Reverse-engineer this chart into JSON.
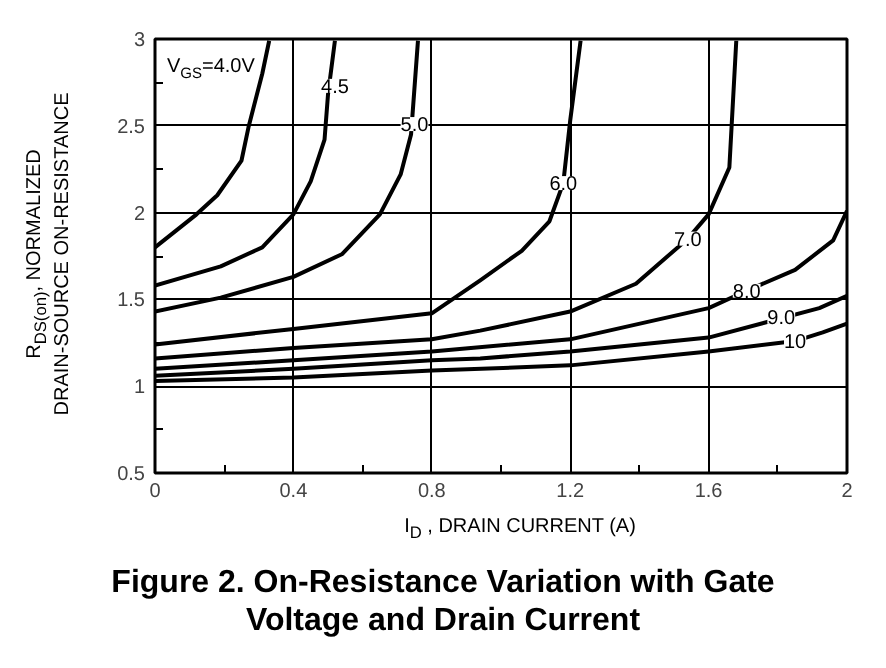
{
  "chart_data": {
    "type": "line",
    "title": "Figure 2. On-Resistance Variation with Gate Voltage and Drain Current",
    "xlabel": "I$_{D}$ , DRAIN CURRENT (A)",
    "ylabel": "R$_{DS(on)}$, NORMALIZED\nDRAIN-SOURCE ON-RESISTANCE",
    "xlim": [
      0,
      2
    ],
    "ylim": [
      0.5,
      3
    ],
    "xticks": [
      0,
      {
        "value": 0.2,
        "label": null
      },
      0.4,
      {
        "value": 0.6,
        "label": null
      },
      0.8,
      {
        "value": 1.0,
        "label": null
      },
      1.2,
      {
        "value": 1.4,
        "label": null
      },
      1.6,
      {
        "value": 1.8,
        "label": null
      },
      2
    ],
    "yticks": [
      {
        "value": 0.5,
        "label": "0.5"
      },
      {
        "value": 0.75,
        "label": null
      },
      1,
      {
        "value": 1.25,
        "label": null
      },
      1.5,
      {
        "value": 1.75,
        "label": null
      },
      2,
      {
        "value": 2.25,
        "label": null
      },
      2.5,
      {
        "value": 2.75,
        "label": null
      },
      3
    ],
    "grid": true,
    "marker": "none",
    "line_style": "solid",
    "series": [
      {
        "color": "#000000",
        "x": [
          0,
          0.12,
          0.18,
          0.25,
          0.27,
          0.31,
          0.33
        ],
        "values": [
          1.8,
          1.99,
          2.1,
          2.3,
          2.49,
          2.8,
          2.99
        ]
      },
      {
        "color": "#000000",
        "x": [
          0,
          0.19,
          0.31,
          0.4,
          0.45,
          0.49,
          0.5,
          0.52
        ],
        "values": [
          1.58,
          1.69,
          1.8,
          1.99,
          2.18,
          2.42,
          2.68,
          2.99
        ]
      },
      {
        "color": "#000000",
        "x": [
          0,
          0.19,
          0.4,
          0.54,
          0.65,
          0.71,
          0.74,
          0.76
        ],
        "values": [
          1.43,
          1.51,
          1.63,
          1.76,
          1.99,
          2.22,
          2.45,
          2.99
        ]
      },
      {
        "color": "#000000",
        "x": [
          0,
          0.4,
          0.8,
          0.94,
          1.06,
          1.14,
          1.18,
          1.2,
          1.23
        ],
        "values": [
          1.24,
          1.33,
          1.42,
          1.61,
          1.78,
          1.95,
          2.17,
          2.53,
          2.99
        ]
      },
      {
        "color": "#000000",
        "x": [
          0,
          0.4,
          0.8,
          0.94,
          1.2,
          1.39,
          1.54,
          1.6,
          1.66,
          1.68
        ],
        "values": [
          1.16,
          1.22,
          1.27,
          1.32,
          1.43,
          1.59,
          1.85,
          1.99,
          2.26,
          2.99
        ]
      },
      {
        "color": "#000000",
        "x": [
          0,
          0.4,
          0.8,
          1.2,
          1.6,
          1.71,
          1.85,
          1.96,
          2
        ],
        "values": [
          1.1,
          1.15,
          1.2,
          1.27,
          1.45,
          1.55,
          1.67,
          1.84,
          2.01
        ]
      },
      {
        "color": "#000000",
        "x": [
          0,
          0.4,
          0.8,
          0.94,
          1.2,
          1.6,
          1.92,
          2
        ],
        "values": [
          1.06,
          1.1,
          1.15,
          1.16,
          1.2,
          1.28,
          1.45,
          1.52
        ]
      },
      {
        "color": "#000000",
        "x": [
          0,
          0.4,
          0.8,
          1.2,
          1.6,
          1.85,
          1.93,
          2
        ],
        "values": [
          1.03,
          1.05,
          1.09,
          1.12,
          1.2,
          1.26,
          1.31,
          1.36
        ]
      }
    ],
    "annotations": [
      "V$_{GS}$=4.0V",
      {
        "text": "4.5",
        "x": 0.52,
        "y": 2.73
      },
      {
        "text": "5.0",
        "x": 0.75,
        "y": 2.51
      },
      {
        "text": "6.0",
        "x": 1.18,
        "y": 2.17
      },
      {
        "text": "7.0",
        "x": 1.54,
        "y": 1.85
      },
      {
        "text": "8.0",
        "x": 1.71,
        "y": 1.55
      },
      {
        "text": "9.0",
        "x": 1.81,
        "y": 1.4
      },
      {
        "text": "10",
        "x": 1.85,
        "y": 1.26
      }
    ]
  }
}
